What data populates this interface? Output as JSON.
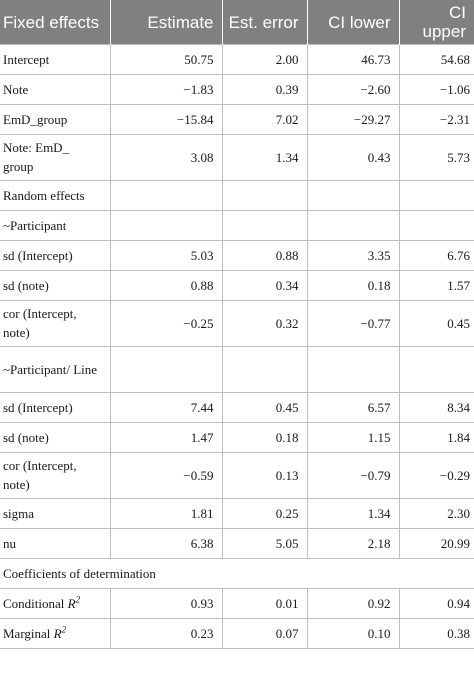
{
  "headers": [
    "Fixed effects",
    "Estimate",
    "Est. error",
    "CI lower",
    "CI upper"
  ],
  "rows": [
    {
      "label": "Intercept",
      "values": [
        "50.75",
        "2.00",
        "46.73",
        "54.68"
      ]
    },
    {
      "label": "Note",
      "values": [
        "−1.83",
        "0.39",
        "−2.60",
        "−1.06"
      ]
    },
    {
      "label": "EmD_group",
      "values": [
        "−15.84",
        "7.02",
        "−29.27",
        "−2.31"
      ]
    },
    {
      "label": "Note: EmD_ group",
      "values": [
        "3.08",
        "1.34",
        "0.43",
        "5.73"
      ],
      "tall": true
    },
    {
      "label": "Random effects",
      "values": [
        "",
        "",
        "",
        ""
      ]
    },
    {
      "label": "~Participant",
      "values": [
        "",
        "",
        "",
        ""
      ]
    },
    {
      "label": "sd (Intercept)",
      "values": [
        "5.03",
        "0.88",
        "3.35",
        "6.76"
      ]
    },
    {
      "label": "sd (note)",
      "values": [
        "0.88",
        "0.34",
        "0.18",
        "1.57"
      ]
    },
    {
      "label": "cor (Intercept, note)",
      "values": [
        "−0.25",
        "0.32",
        "−0.77",
        "0.45"
      ],
      "tall": true
    },
    {
      "label": "~Participant/ Line",
      "values": [
        "",
        "",
        "",
        ""
      ],
      "tall": true
    },
    {
      "label": "sd (Intercept)",
      "values": [
        "7.44",
        "0.45",
        "6.57",
        "8.34"
      ]
    },
    {
      "label": "sd (note)",
      "values": [
        "1.47",
        "0.18",
        "1.15",
        "1.84"
      ]
    },
    {
      "label": "cor (Intercept, note)",
      "values": [
        "−0.59",
        "0.13",
        "−0.79",
        "−0.29"
      ],
      "tall": true
    },
    {
      "label": "sigma",
      "values": [
        "1.81",
        "0.25",
        "1.34",
        "2.30"
      ]
    },
    {
      "label": "nu",
      "values": [
        "6.38",
        "5.05",
        "2.18",
        "20.99"
      ]
    },
    {
      "label": "Coefficients of determination",
      "values": [],
      "span": true
    },
    {
      "label": "Conditional ",
      "sup": "2",
      "values": [
        "0.93",
        "0.01",
        "0.92",
        "0.94"
      ]
    },
    {
      "label": "Marginal ",
      "sup": "2",
      "values": [
        "0.23",
        "0.07",
        "0.10",
        "0.38"
      ]
    }
  ]
}
